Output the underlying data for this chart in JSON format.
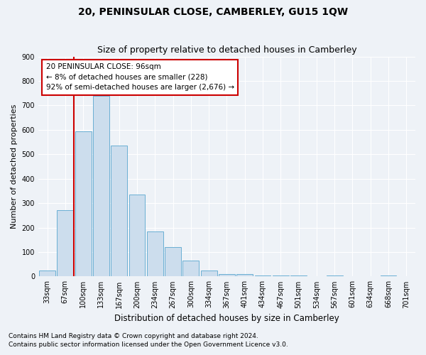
{
  "title": "20, PENINSULAR CLOSE, CAMBERLEY, GU15 1QW",
  "subtitle": "Size of property relative to detached houses in Camberley",
  "xlabel": "Distribution of detached houses by size in Camberley",
  "ylabel": "Number of detached properties",
  "categories": [
    "33sqm",
    "67sqm",
    "100sqm",
    "133sqm",
    "167sqm",
    "200sqm",
    "234sqm",
    "267sqm",
    "300sqm",
    "334sqm",
    "367sqm",
    "401sqm",
    "434sqm",
    "467sqm",
    "501sqm",
    "534sqm",
    "567sqm",
    "601sqm",
    "634sqm",
    "668sqm",
    "701sqm"
  ],
  "values": [
    25,
    270,
    595,
    740,
    535,
    335,
    185,
    120,
    65,
    25,
    10,
    10,
    5,
    5,
    5,
    0,
    5,
    0,
    0,
    5,
    0
  ],
  "bar_color": "#ccdded",
  "bar_edge_color": "#6aafd4",
  "vline_color": "#cc0000",
  "vline_pos": 1.5,
  "annotation_text": "20 PENINSULAR CLOSE: 96sqm\n← 8% of detached houses are smaller (228)\n92% of semi-detached houses are larger (2,676) →",
  "annotation_box_facecolor": "#ffffff",
  "annotation_box_edgecolor": "#cc0000",
  "ylim": [
    0,
    900
  ],
  "yticks": [
    0,
    100,
    200,
    300,
    400,
    500,
    600,
    700,
    800,
    900
  ],
  "footer1": "Contains HM Land Registry data © Crown copyright and database right 2024.",
  "footer2": "Contains public sector information licensed under the Open Government Licence v3.0.",
  "bg_color": "#eef2f7",
  "plot_bg_color": "#eef2f7",
  "grid_color": "#ffffff",
  "title_fontsize": 10,
  "subtitle_fontsize": 9,
  "xlabel_fontsize": 8.5,
  "ylabel_fontsize": 8,
  "tick_fontsize": 7,
  "footer_fontsize": 6.5,
  "ann_fontsize": 7.5
}
